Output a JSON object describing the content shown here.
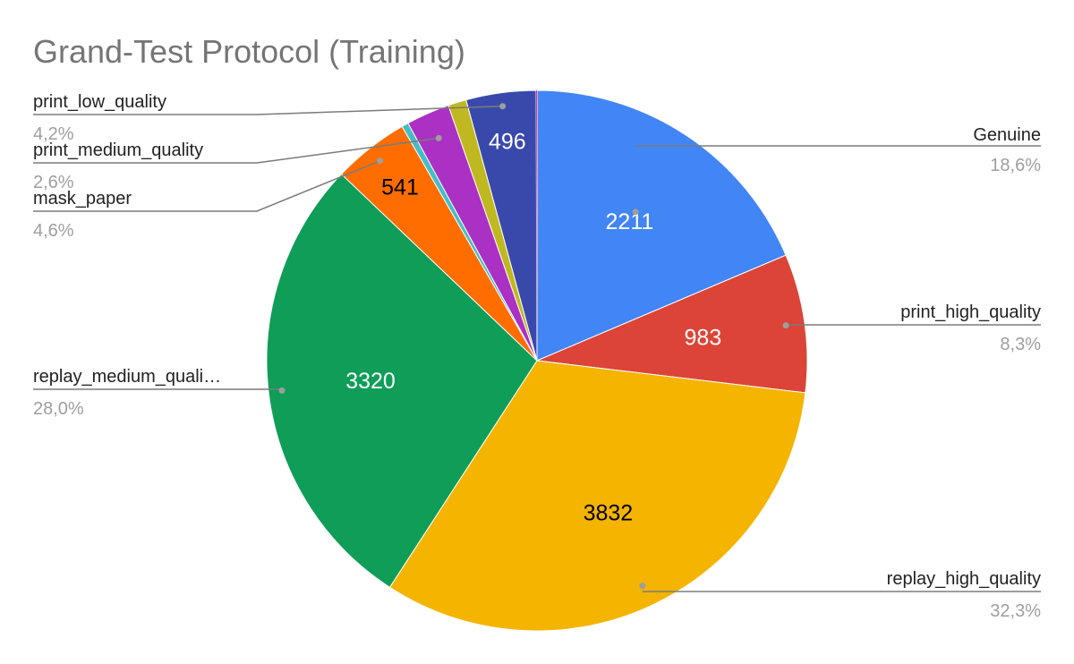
{
  "chart_data": {
    "type": "pie",
    "title": "Grand-Test Protocol (Training)",
    "slices": [
      {
        "name": "Genuine",
        "value": 2211,
        "percent_label": "18,6%",
        "color": "#4285f4",
        "value_color": "#ffffff",
        "show_value": true,
        "show_label": true
      },
      {
        "name": "print_high_quality",
        "value": 983,
        "percent_label": "8,3%",
        "color": "#db4437",
        "value_color": "#ffffff",
        "show_value": true,
        "show_label": true
      },
      {
        "name": "replay_high_quality",
        "value": 3832,
        "percent_label": "32,3%",
        "color": "#f4b400",
        "value_color": "#000000",
        "show_value": true,
        "show_label": true
      },
      {
        "name": "replay_medium_quali…",
        "value": 3320,
        "percent_label": "28,0%",
        "color": "#0f9d58",
        "value_color": "#ffffff",
        "show_value": true,
        "show_label": true
      },
      {
        "name": "mask_paper",
        "value": 541,
        "percent_label": "4,6%",
        "color": "#ff6d00",
        "value_color": "#000000",
        "show_value": true,
        "show_label": true
      },
      {
        "name": "",
        "value": 48,
        "percent_label": "",
        "color": "#46bdc6",
        "value_color": "#000000",
        "show_value": false,
        "show_label": false
      },
      {
        "name": "print_medium_quality",
        "value": 308,
        "percent_label": "2,6%",
        "color": "#ab30c4",
        "value_color": "#ffffff",
        "show_value": false,
        "show_label": true
      },
      {
        "name": "",
        "value": 130,
        "percent_label": "",
        "color": "#c0b820",
        "value_color": "#000000",
        "show_value": false,
        "show_label": false
      },
      {
        "name": "print_low_quality",
        "value": 496,
        "percent_label": "4,2%",
        "color": "#3949ab",
        "value_color": "#ffffff",
        "show_value": true,
        "show_label": true
      },
      {
        "name": "",
        "value": 6,
        "percent_label": "",
        "color": "#e91e63",
        "value_color": "#000000",
        "show_value": false,
        "show_label": false
      }
    ],
    "start_angle_deg": 0,
    "direction": "clockwise",
    "legend": "none"
  }
}
